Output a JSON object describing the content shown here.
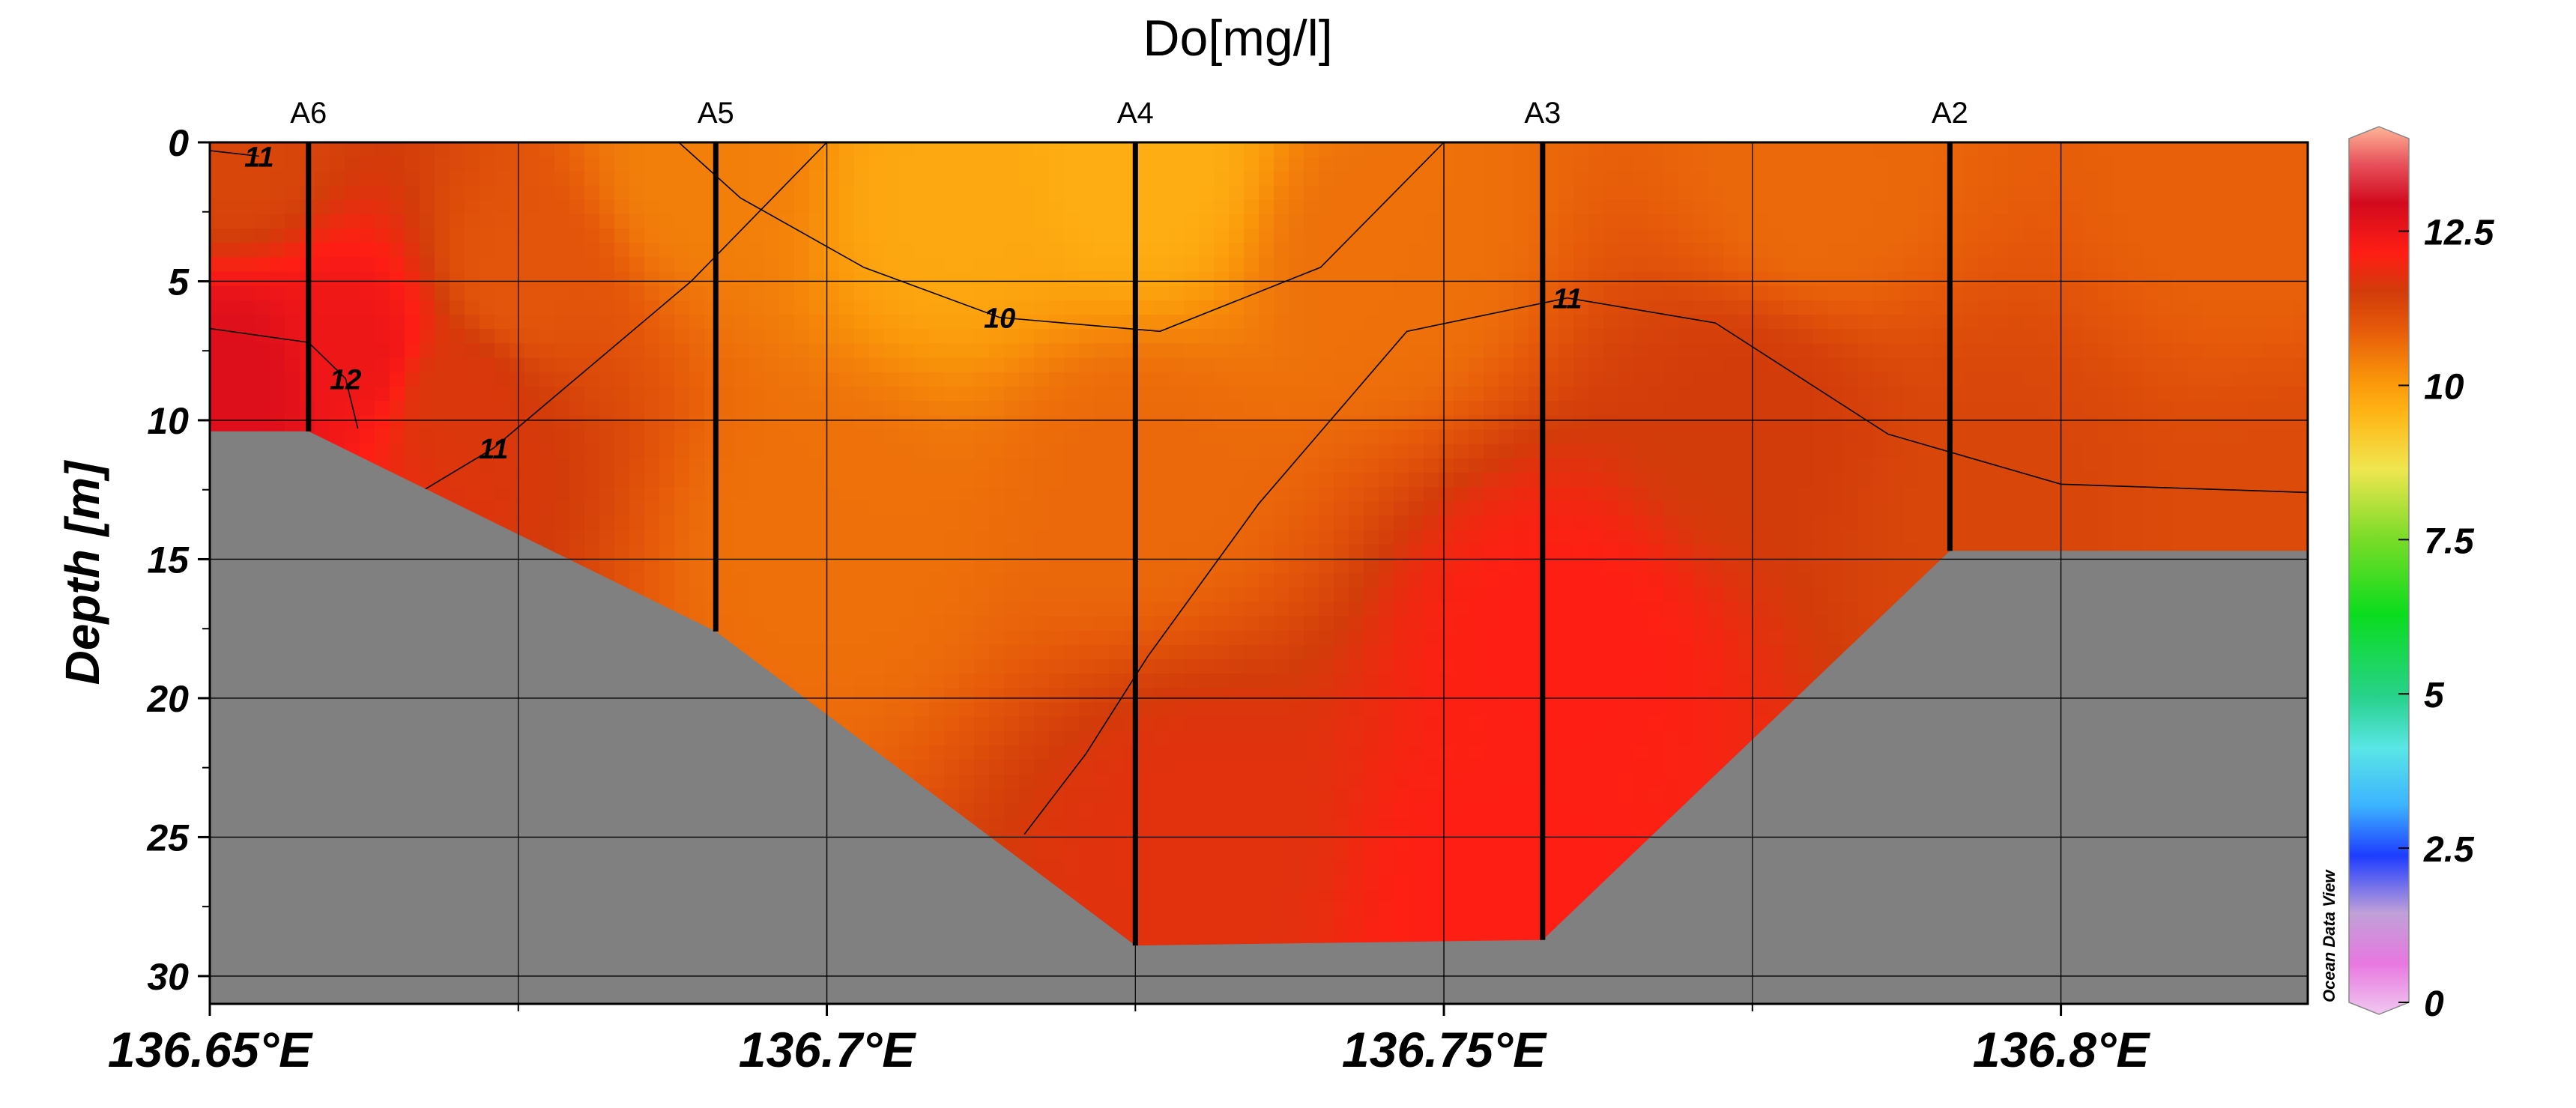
{
  "chart_data": {
    "type": "heatmap",
    "title": "Do[mg/l]",
    "xlabel": "",
    "ylabel": "Depth [m]",
    "xlim": [
      136.65,
      136.82
    ],
    "ylim": [
      31,
      0
    ],
    "x_ticks": [
      136.65,
      136.7,
      136.75,
      136.8
    ],
    "x_tick_labels": [
      "136.65°E",
      "136.7°E",
      "136.75°E",
      "136.8°E"
    ],
    "y_ticks": [
      0,
      5,
      10,
      15,
      20,
      25,
      30
    ],
    "y_tick_labels": [
      "0",
      "5",
      "10",
      "15",
      "20",
      "25",
      "30"
    ],
    "grid": true,
    "stations": [
      {
        "name": "A6",
        "lon": 136.658,
        "max_depth": 10.4
      },
      {
        "name": "A5",
        "lon": 136.691,
        "max_depth": 17.6
      },
      {
        "name": "A4",
        "lon": 136.725,
        "max_depth": 28.9
      },
      {
        "name": "A3",
        "lon": 136.758,
        "max_depth": 28.7
      },
      {
        "name": "A2",
        "lon": 136.791,
        "max_depth": 14.7
      }
    ],
    "field_samples": [
      {
        "lon": 136.652,
        "depth": 0.5,
        "do": 11.2
      },
      {
        "lon": 136.652,
        "depth": 8.5,
        "do": 12.6
      },
      {
        "lon": 136.662,
        "depth": 7.5,
        "do": 12.3
      },
      {
        "lon": 136.67,
        "depth": 9.0,
        "do": 11.5
      },
      {
        "lon": 136.675,
        "depth": 5.0,
        "do": 10.9
      },
      {
        "lon": 136.69,
        "depth": 1.0,
        "do": 10.3
      },
      {
        "lon": 136.71,
        "depth": 2.0,
        "do": 9.7
      },
      {
        "lon": 136.725,
        "depth": 1.0,
        "do": 9.6
      },
      {
        "lon": 136.7,
        "depth": 14.0,
        "do": 10.5
      },
      {
        "lon": 136.725,
        "depth": 12.0,
        "do": 10.6
      },
      {
        "lon": 136.73,
        "depth": 25.0,
        "do": 11.6
      },
      {
        "lon": 136.745,
        "depth": 4.0,
        "do": 10.5
      },
      {
        "lon": 136.76,
        "depth": 18.0,
        "do": 12.0
      },
      {
        "lon": 136.755,
        "depth": 27.0,
        "do": 12.0
      },
      {
        "lon": 136.775,
        "depth": 10.0,
        "do": 11.4
      },
      {
        "lon": 136.78,
        "depth": 2.0,
        "do": 10.6
      },
      {
        "lon": 136.795,
        "depth": 13.0,
        "do": 11.2
      },
      {
        "lon": 136.815,
        "depth": 2.0,
        "do": 10.7
      },
      {
        "lon": 136.818,
        "depth": 14.0,
        "do": 11.1
      }
    ],
    "bathymetry": [
      {
        "lon": 136.65,
        "depth": 10.4
      },
      {
        "lon": 136.658,
        "depth": 10.4
      },
      {
        "lon": 136.691,
        "depth": 17.6
      },
      {
        "lon": 136.725,
        "depth": 28.9
      },
      {
        "lon": 136.758,
        "depth": 28.7
      },
      {
        "lon": 136.791,
        "depth": 14.7
      },
      {
        "lon": 136.82,
        "depth": 14.7
      }
    ],
    "contours": [
      {
        "level": 10,
        "label": "10",
        "points": [
          [
            136.688,
            0
          ],
          [
            136.693,
            2.0
          ],
          [
            136.703,
            4.5
          ],
          [
            136.714,
            6.3
          ],
          [
            136.727,
            6.8
          ],
          [
            136.74,
            4.5
          ],
          [
            136.75,
            0
          ]
        ]
      },
      {
        "level": 11,
        "label": "11",
        "points": [
          [
            136.7,
            0
          ],
          [
            136.689,
            5.0
          ],
          [
            136.673,
            11.0
          ],
          [
            136.667,
            12.6
          ]
        ]
      },
      {
        "level": 11,
        "label": "11",
        "points": [
          [
            136.65,
            0.3
          ],
          [
            136.654,
            0.5
          ]
        ]
      },
      {
        "level": 12,
        "label": "12",
        "points": [
          [
            136.65,
            6.7
          ],
          [
            136.658,
            7.2
          ],
          [
            136.661,
            8.5
          ],
          [
            136.662,
            10.3
          ]
        ]
      },
      {
        "level": 11,
        "label": "11",
        "points": [
          [
            136.716,
            24.9
          ],
          [
            136.721,
            22.0
          ],
          [
            136.726,
            18.5
          ],
          [
            136.735,
            13.0
          ],
          [
            136.747,
            6.8
          ],
          [
            136.76,
            5.6
          ],
          [
            136.772,
            6.5
          ],
          [
            136.786,
            10.5
          ],
          [
            136.8,
            12.3
          ],
          [
            136.82,
            12.6
          ]
        ]
      }
    ],
    "colorbar": {
      "min": 0,
      "max": 14,
      "ticks": [
        0,
        2.5,
        5,
        7.5,
        10,
        12.5
      ],
      "tick_labels": [
        "0",
        "2.5",
        "5",
        "7.5",
        "10",
        "12.5"
      ],
      "stops": [
        {
          "v": 0,
          "color": "#f0c8f0"
        },
        {
          "v": 0.8,
          "color": "#e878e0"
        },
        {
          "v": 1.6,
          "color": "#c0a0d8"
        },
        {
          "v": 2.5,
          "color": "#1e3cff"
        },
        {
          "v": 3.3,
          "color": "#3cb4ff"
        },
        {
          "v": 4.2,
          "color": "#5ae6e6"
        },
        {
          "v": 5.0,
          "color": "#28d28c"
        },
        {
          "v": 6.3,
          "color": "#0adc1e"
        },
        {
          "v": 7.5,
          "color": "#7adc28"
        },
        {
          "v": 8.6,
          "color": "#f0e650"
        },
        {
          "v": 9.5,
          "color": "#ffb414"
        },
        {
          "v": 10.0,
          "color": "#fa960a"
        },
        {
          "v": 10.8,
          "color": "#e65a0a"
        },
        {
          "v": 11.4,
          "color": "#d23c0a"
        },
        {
          "v": 12.0,
          "color": "#ff1e14"
        },
        {
          "v": 12.8,
          "color": "#d20a1e"
        },
        {
          "v": 13.4,
          "color": "#e6505a"
        },
        {
          "v": 14.0,
          "color": "#ffb496"
        }
      ]
    },
    "watermark": "Ocean Data View",
    "colors": {
      "land": "#808080",
      "grid": "#000000",
      "station": "#000000"
    }
  }
}
